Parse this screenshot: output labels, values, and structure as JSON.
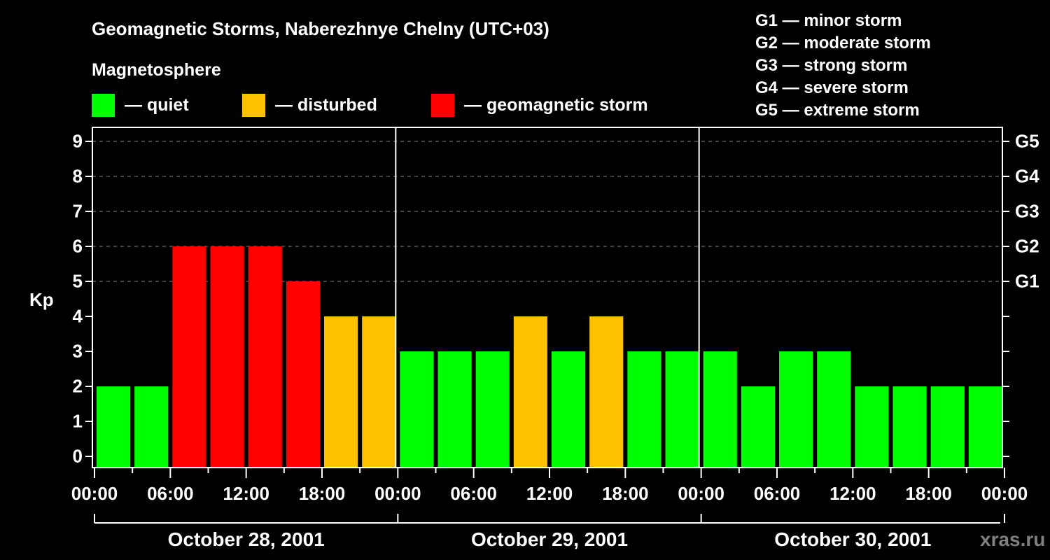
{
  "header": {
    "title": "Geomagnetic Storms, Naberezhnye Chelny (UTC+03)",
    "subtitle": "Magnetosphere"
  },
  "legend": [
    {
      "label": "— quiet",
      "color": "#00ff00"
    },
    {
      "label": "— disturbed",
      "color": "#ffc000"
    },
    {
      "label": "— geomagnetic storm",
      "color": "#ff0000"
    }
  ],
  "g_scale_legend": [
    "G1 — minor storm",
    "G2 — moderate storm",
    "G3 — strong storm",
    "G4 — severe storm",
    "G5 — extreme storm"
  ],
  "watermark": "xras.ru",
  "chart_data": {
    "type": "bar",
    "title": "Geomagnetic Storms, Naberezhnye Chelny (UTC+03)",
    "xlabel": "",
    "ylabel": "Kp",
    "ylim": [
      0,
      9
    ],
    "yticks": [
      "0",
      "1",
      "2",
      "3",
      "4",
      "5",
      "6",
      "7",
      "8",
      "9"
    ],
    "y2ticks": [
      {
        "kp": 5,
        "label": "G1"
      },
      {
        "kp": 6,
        "label": "G2"
      },
      {
        "kp": 7,
        "label": "G3"
      },
      {
        "kp": 8,
        "label": "G4"
      },
      {
        "kp": 9,
        "label": "G5"
      }
    ],
    "grid": "dashed horizontal at Kp 5-9",
    "x_tick_labels": [
      "00:00",
      "06:00",
      "12:00",
      "18:00",
      "00:00",
      "06:00",
      "12:00",
      "18:00",
      "00:00",
      "06:00",
      "12:00",
      "18:00",
      "00:00"
    ],
    "dates": [
      "October 28, 2001",
      "October 29, 2001",
      "October 30, 2001"
    ],
    "categories": [
      "Oct 28 00-03",
      "Oct 28 03-06",
      "Oct 28 06-09",
      "Oct 28 09-12",
      "Oct 28 12-15",
      "Oct 28 15-18",
      "Oct 28 18-21",
      "Oct 28 21-24",
      "Oct 29 00-03",
      "Oct 29 03-06",
      "Oct 29 06-09",
      "Oct 29 09-12",
      "Oct 29 12-15",
      "Oct 29 15-18",
      "Oct 29 18-21",
      "Oct 29 21-24",
      "Oct 30 00-03",
      "Oct 30 03-06",
      "Oct 30 06-09",
      "Oct 30 09-12",
      "Oct 30 12-15",
      "Oct 30 15-18",
      "Oct 30 18-21",
      "Oct 30 21-24"
    ],
    "values": [
      2,
      2,
      6,
      6,
      6,
      5,
      4,
      4,
      3,
      3,
      3,
      4,
      3,
      4,
      3,
      3,
      3,
      2,
      3,
      3,
      2,
      2,
      2,
      2
    ],
    "status": [
      "quiet",
      "quiet",
      "storm",
      "storm",
      "storm",
      "storm",
      "disturbed",
      "disturbed",
      "quiet",
      "quiet",
      "quiet",
      "disturbed",
      "quiet",
      "disturbed",
      "quiet",
      "quiet",
      "quiet",
      "quiet",
      "quiet",
      "quiet",
      "quiet",
      "quiet",
      "quiet",
      "quiet"
    ],
    "colors": {
      "quiet": "#00ff00",
      "disturbed": "#ffc000",
      "storm": "#ff0000"
    }
  }
}
